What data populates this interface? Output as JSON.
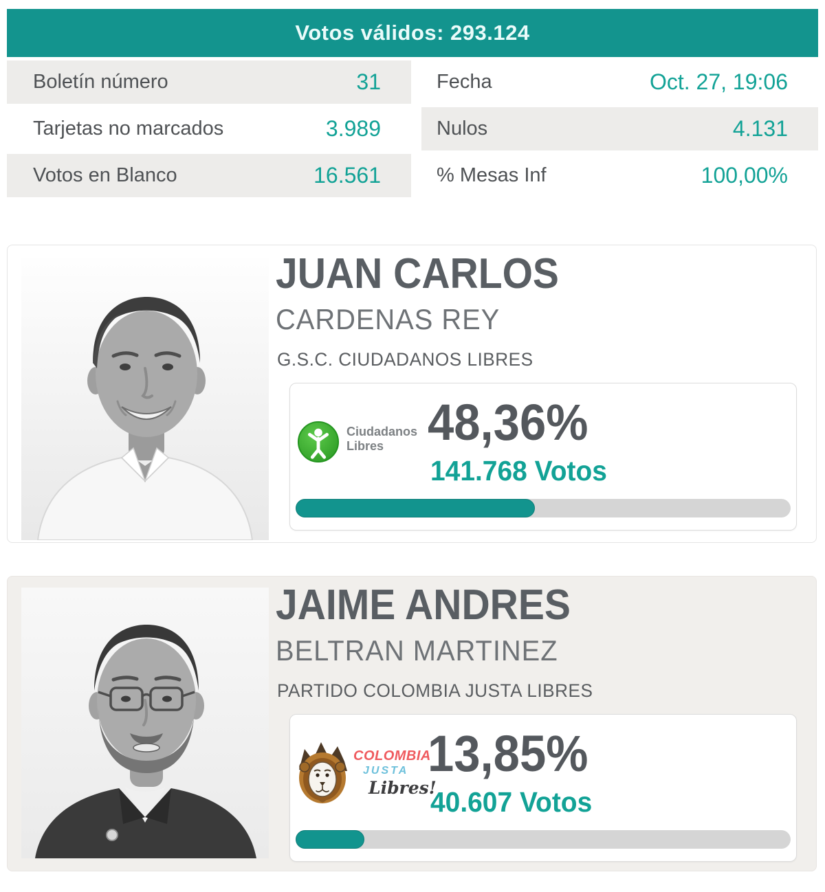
{
  "summary": {
    "header_text": "Votos válidos: 293.124",
    "cells": [
      {
        "label": "Boletín número",
        "value": "31"
      },
      {
        "label": "Fecha",
        "value": "Oct. 27, 19:06"
      },
      {
        "label": "Tarjetas no marcados",
        "value": "3.989"
      },
      {
        "label": "Nulos",
        "value": "4.131"
      },
      {
        "label": "Votos en Blanco",
        "value": "16.561"
      },
      {
        "label": "% Mesas Inf",
        "value": "100,00%"
      }
    ]
  },
  "candidates": [
    {
      "first_name": "JUAN CARLOS",
      "last_name": "CARDENAS REY",
      "party": "G.S.C. CIUDADANOS LIBRES",
      "percent_label": "48,36%",
      "percent_value": 48.36,
      "votes_label": "141.768 Votos",
      "logo": {
        "icon": "ciudadanos-libres-logo",
        "line1": "Ciudadanos",
        "line2": "Libres"
      }
    },
    {
      "first_name": "JAIME ANDRES",
      "last_name": "BELTRAN MARTINEZ",
      "party": "PARTIDO COLOMBIA JUSTA LIBRES",
      "percent_label": "13,85%",
      "percent_value": 13.85,
      "votes_label": "40.607 Votos",
      "logo": {
        "icon": "colombia-justa-libres-logo",
        "line1": "COLOMBIA",
        "line2": "JUSTA",
        "line3": "Libres!"
      }
    }
  ],
  "colors": {
    "header_teal": "#13948e",
    "value_teal": "#12a296",
    "progress_fill_teal": "#12948e",
    "progress_track_gray": "#d5d5d5",
    "row_gray": "#edecea",
    "card2_bg": "#f1efec",
    "logo_green": "#3fae2d",
    "logo_red": "#ef5a5e",
    "logo_blue": "#6cc0db"
  }
}
